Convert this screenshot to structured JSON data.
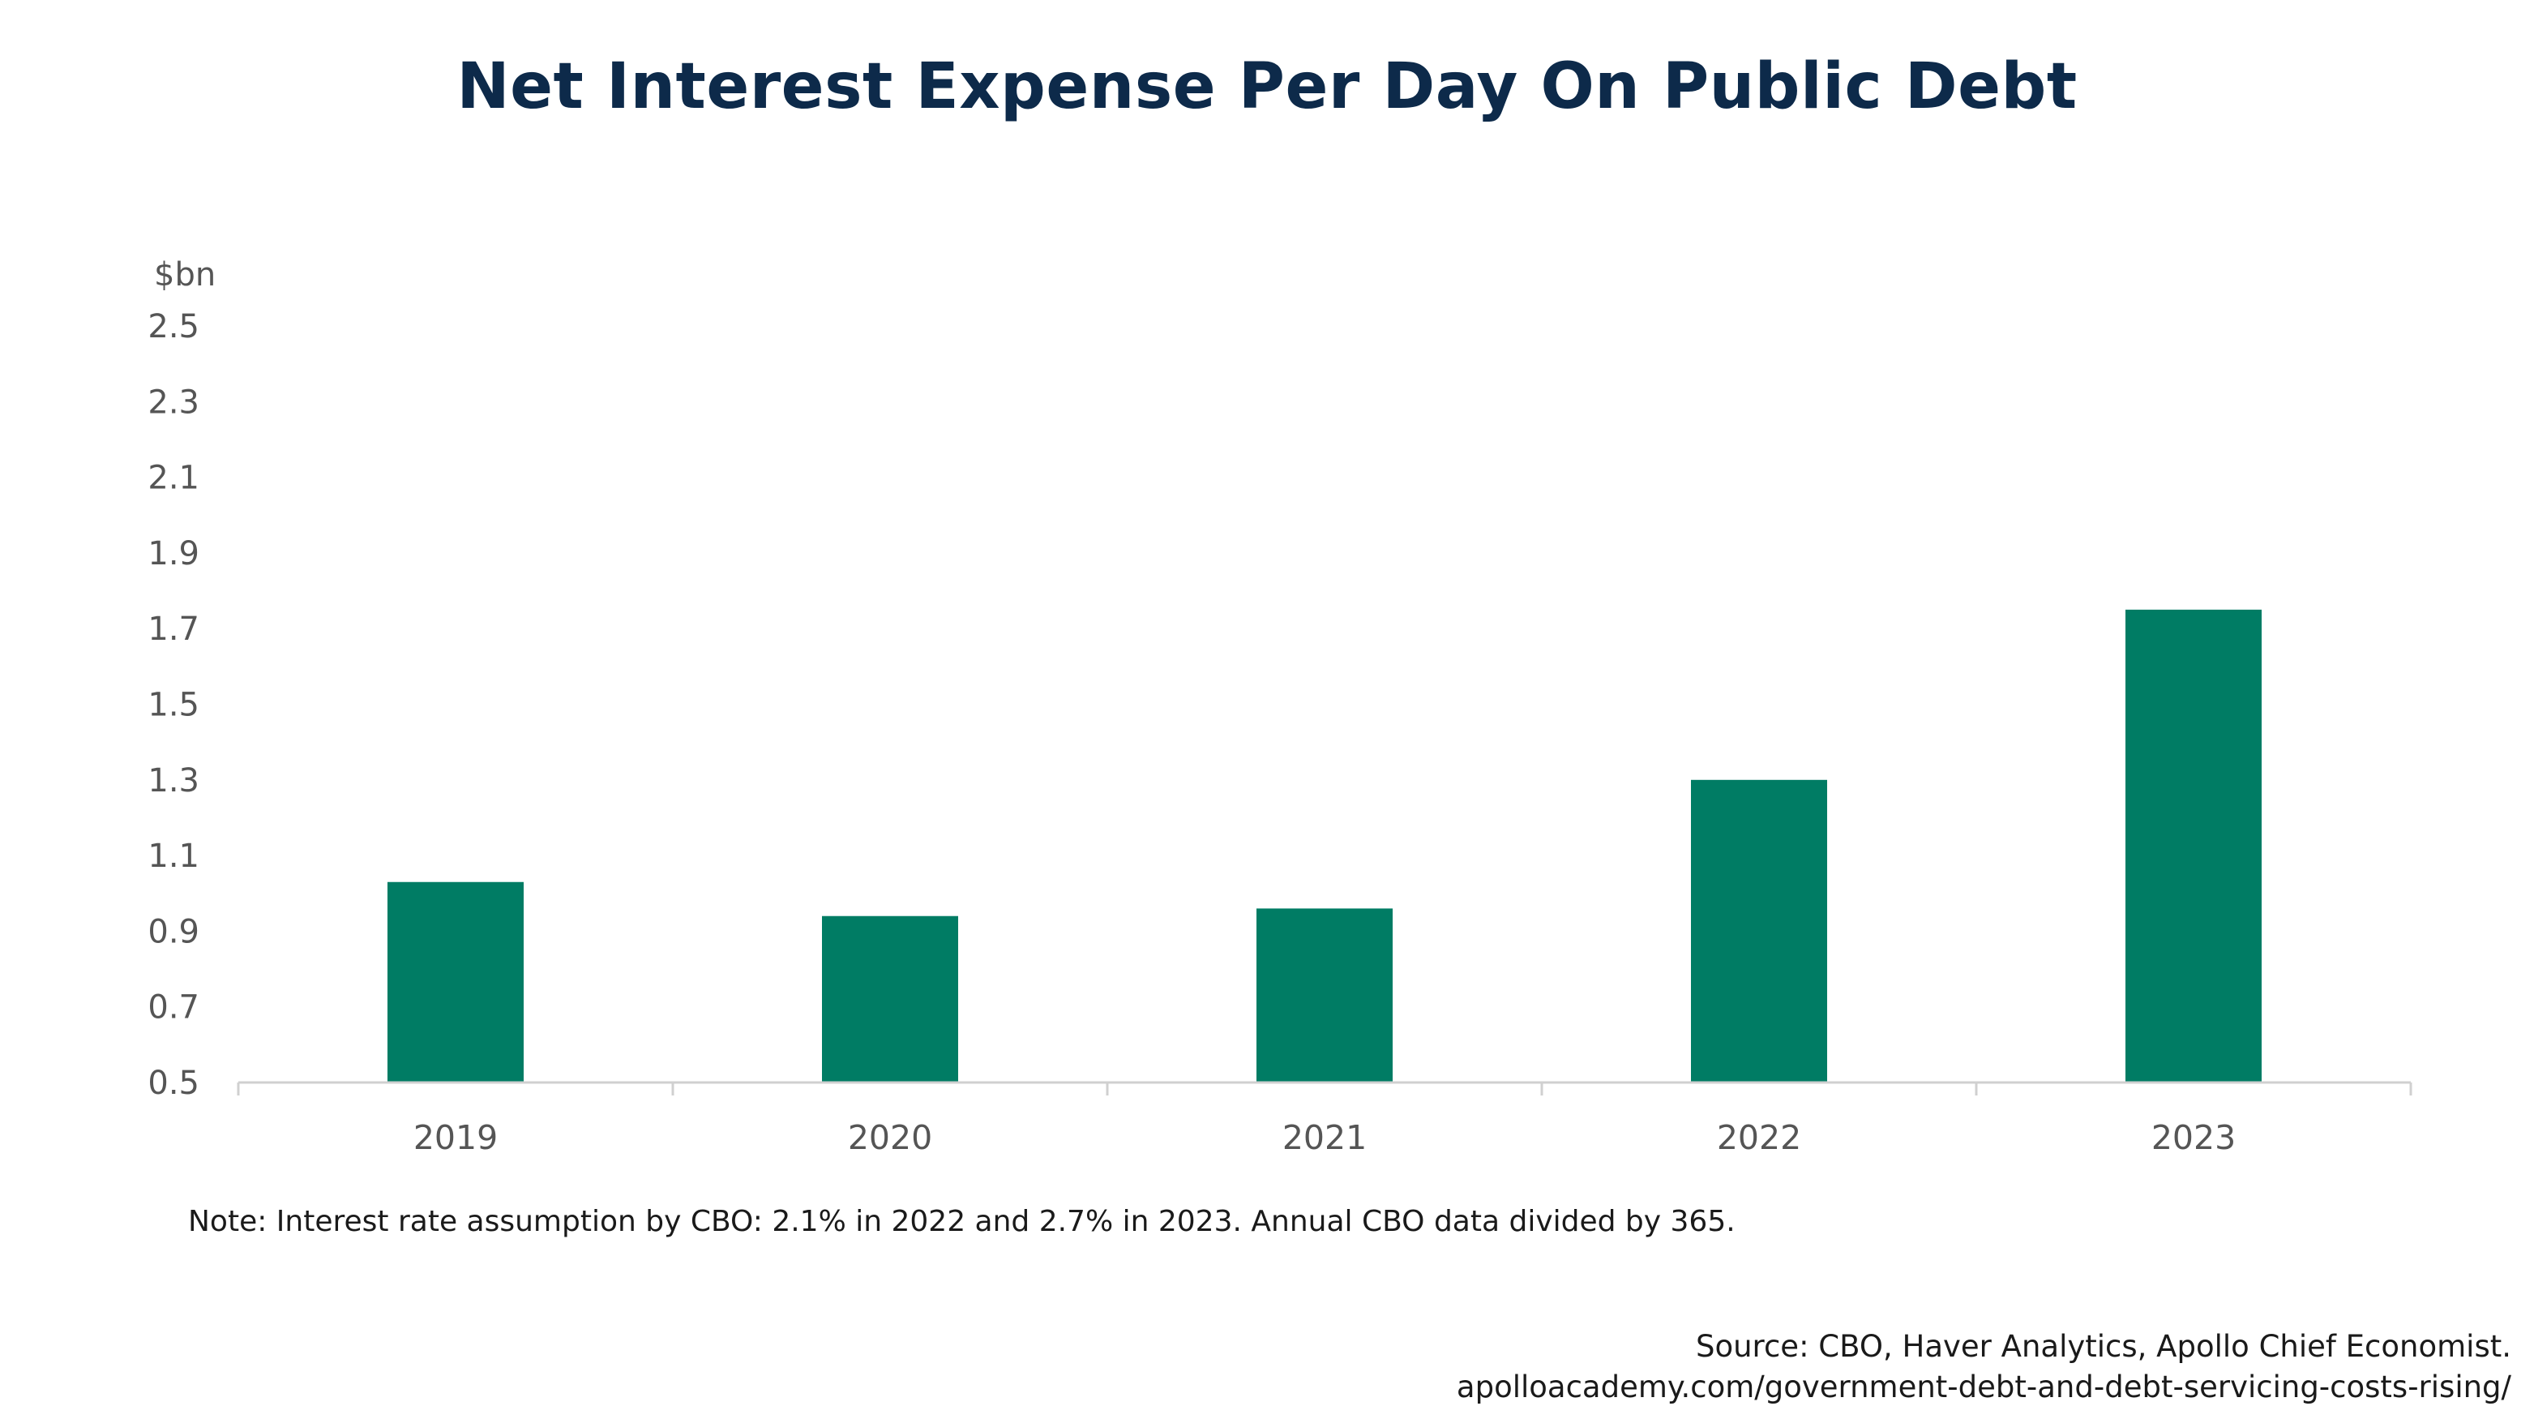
{
  "header": {
    "title": "Net Interest Expense Per Day On Public Debt"
  },
  "footer": {
    "note": "Note: Interest rate assumption by CBO: 2.1% in 2022 and 2.7% in 2023. Annual CBO data divided by 365.",
    "source_line1": "Source: CBO, Haver Analytics, Apollo Chief Economist.",
    "source_line2": "apolloacademy.com/government-debt-and-debt-servicing-costs-rising/"
  },
  "chart_data": {
    "type": "bar",
    "title": "Net Interest Expense Per Day On Public Debt",
    "ylabel": "$bn",
    "xlabel": "",
    "categories": [
      "2019",
      "2020",
      "2021",
      "2022",
      "2023"
    ],
    "values": [
      1.03,
      0.94,
      0.96,
      1.3,
      1.75
    ],
    "ylim": [
      0.5,
      2.5
    ],
    "yticks": [
      "0.5",
      "0.7",
      "0.9",
      "1.1",
      "1.3",
      "1.5",
      "1.7",
      "1.9",
      "2.1",
      "2.3",
      "2.5"
    ],
    "grid": false,
    "legend": "none",
    "colors": {
      "bar": "#007c64",
      "axis": "#d0d0d0",
      "tick_text": "#555555"
    }
  }
}
